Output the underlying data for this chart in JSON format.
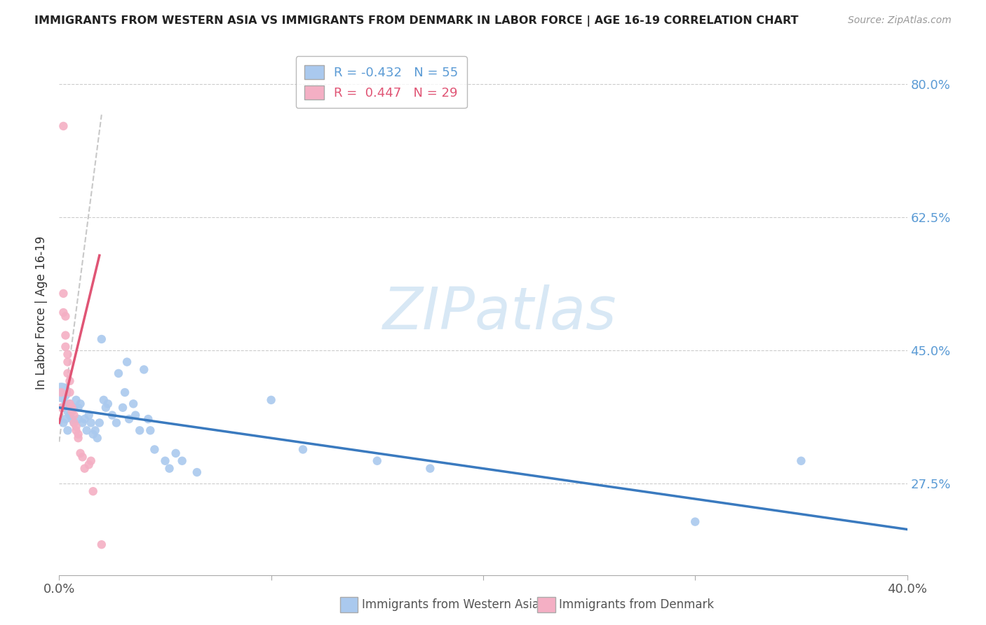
{
  "title": "IMMIGRANTS FROM WESTERN ASIA VS IMMIGRANTS FROM DENMARK IN LABOR FORCE | AGE 16-19 CORRELATION CHART",
  "source": "Source: ZipAtlas.com",
  "ylabel": "In Labor Force | Age 16-19",
  "xlim": [
    0.0,
    0.4
  ],
  "ylim": [
    0.155,
    0.845
  ],
  "yticks_right": [
    0.275,
    0.45,
    0.625,
    0.8
  ],
  "ytick_labels_right": [
    "27.5%",
    "45.0%",
    "62.5%",
    "80.0%"
  ],
  "xticks": [
    0.0,
    0.1,
    0.2,
    0.3,
    0.4
  ],
  "xtick_labels": [
    "0.0%",
    "",
    "",
    "",
    "40.0%"
  ],
  "blue_R": -0.432,
  "blue_N": 55,
  "pink_R": 0.447,
  "pink_N": 29,
  "blue_color": "#aac9ee",
  "pink_color": "#f4afc4",
  "blue_line_color": "#3a7abf",
  "pink_line_color": "#e05575",
  "gray_line_color": "#c8c8c8",
  "watermark_text": "ZIPatlas",
  "watermark_color": "#d8e8f5",
  "legend_blue_label": "Immigrants from Western Asia",
  "legend_pink_label": "Immigrants from Denmark",
  "blue_line_x": [
    0.0,
    0.4
  ],
  "blue_line_y": [
    0.375,
    0.215
  ],
  "pink_line_x": [
    0.0,
    0.019
  ],
  "pink_line_y": [
    0.355,
    0.575
  ],
  "gray_line_x": [
    0.0,
    0.02
  ],
  "gray_line_y": [
    0.33,
    0.76
  ],
  "blue_points": [
    [
      0.001,
      0.395
    ],
    [
      0.002,
      0.375
    ],
    [
      0.002,
      0.355
    ],
    [
      0.003,
      0.38
    ],
    [
      0.003,
      0.36
    ],
    [
      0.004,
      0.37
    ],
    [
      0.004,
      0.345
    ],
    [
      0.005,
      0.365
    ],
    [
      0.005,
      0.38
    ],
    [
      0.006,
      0.36
    ],
    [
      0.006,
      0.375
    ],
    [
      0.007,
      0.355
    ],
    [
      0.007,
      0.375
    ],
    [
      0.008,
      0.385
    ],
    [
      0.009,
      0.375
    ],
    [
      0.009,
      0.36
    ],
    [
      0.01,
      0.38
    ],
    [
      0.011,
      0.355
    ],
    [
      0.012,
      0.36
    ],
    [
      0.013,
      0.345
    ],
    [
      0.014,
      0.365
    ],
    [
      0.015,
      0.355
    ],
    [
      0.016,
      0.34
    ],
    [
      0.017,
      0.345
    ],
    [
      0.018,
      0.335
    ],
    [
      0.019,
      0.355
    ],
    [
      0.02,
      0.465
    ],
    [
      0.021,
      0.385
    ],
    [
      0.022,
      0.375
    ],
    [
      0.023,
      0.38
    ],
    [
      0.025,
      0.365
    ],
    [
      0.027,
      0.355
    ],
    [
      0.028,
      0.42
    ],
    [
      0.03,
      0.375
    ],
    [
      0.031,
      0.395
    ],
    [
      0.032,
      0.435
    ],
    [
      0.033,
      0.36
    ],
    [
      0.035,
      0.38
    ],
    [
      0.036,
      0.365
    ],
    [
      0.038,
      0.345
    ],
    [
      0.04,
      0.425
    ],
    [
      0.042,
      0.36
    ],
    [
      0.043,
      0.345
    ],
    [
      0.045,
      0.32
    ],
    [
      0.05,
      0.305
    ],
    [
      0.052,
      0.295
    ],
    [
      0.055,
      0.315
    ],
    [
      0.058,
      0.305
    ],
    [
      0.065,
      0.29
    ],
    [
      0.1,
      0.385
    ],
    [
      0.115,
      0.32
    ],
    [
      0.15,
      0.305
    ],
    [
      0.175,
      0.295
    ],
    [
      0.3,
      0.225
    ],
    [
      0.35,
      0.305
    ]
  ],
  "blue_sizes": [
    400,
    80,
    80,
    80,
    80,
    80,
    80,
    80,
    80,
    80,
    80,
    80,
    80,
    80,
    80,
    80,
    80,
    80,
    80,
    80,
    80,
    80,
    80,
    80,
    80,
    80,
    80,
    80,
    80,
    80,
    80,
    80,
    80,
    80,
    80,
    80,
    80,
    80,
    80,
    80,
    80,
    80,
    80,
    80,
    80,
    80,
    80,
    80,
    80,
    80,
    80,
    80,
    80,
    80,
    80
  ],
  "pink_points": [
    [
      0.001,
      0.375
    ],
    [
      0.001,
      0.395
    ],
    [
      0.002,
      0.745
    ],
    [
      0.002,
      0.525
    ],
    [
      0.002,
      0.5
    ],
    [
      0.003,
      0.495
    ],
    [
      0.003,
      0.47
    ],
    [
      0.003,
      0.455
    ],
    [
      0.004,
      0.445
    ],
    [
      0.004,
      0.435
    ],
    [
      0.004,
      0.42
    ],
    [
      0.005,
      0.41
    ],
    [
      0.005,
      0.395
    ],
    [
      0.005,
      0.38
    ],
    [
      0.006,
      0.375
    ],
    [
      0.006,
      0.37
    ],
    [
      0.007,
      0.365
    ],
    [
      0.007,
      0.355
    ],
    [
      0.008,
      0.35
    ],
    [
      0.008,
      0.345
    ],
    [
      0.009,
      0.34
    ],
    [
      0.009,
      0.335
    ],
    [
      0.01,
      0.315
    ],
    [
      0.011,
      0.31
    ],
    [
      0.012,
      0.295
    ],
    [
      0.014,
      0.3
    ],
    [
      0.015,
      0.305
    ],
    [
      0.016,
      0.265
    ],
    [
      0.02,
      0.195
    ]
  ],
  "pink_sizes": [
    80,
    80,
    80,
    80,
    80,
    80,
    80,
    80,
    80,
    80,
    80,
    80,
    80,
    80,
    80,
    80,
    80,
    80,
    80,
    80,
    80,
    80,
    80,
    80,
    80,
    80,
    80,
    80,
    80
  ]
}
